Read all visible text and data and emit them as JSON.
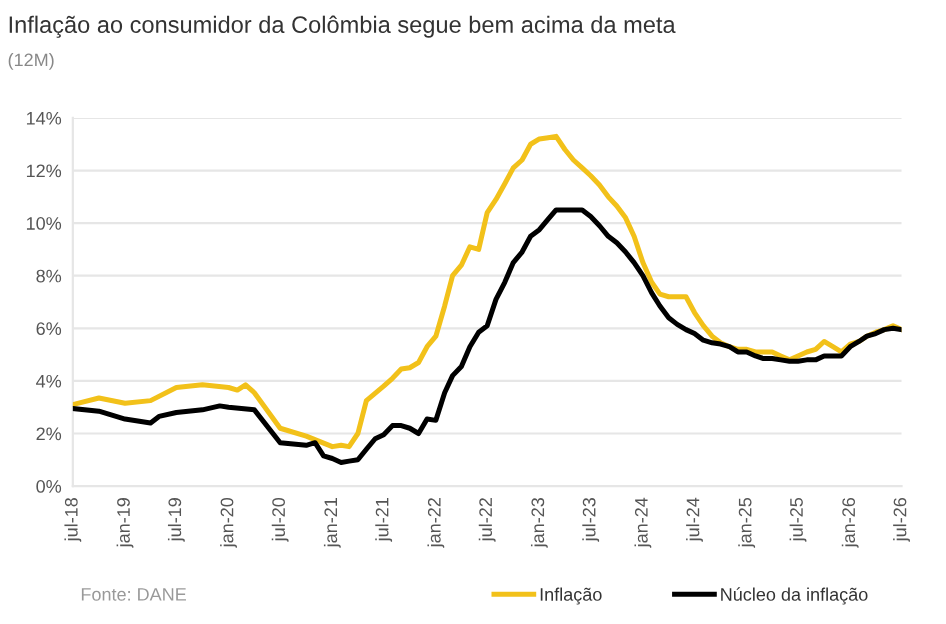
{
  "chart_data": {
    "type": "line",
    "title": "Inflação ao consumidor da Colômbia segue bem acima da meta",
    "subtitle": "(12M)",
    "series": [
      {
        "name": "Inflação",
        "color": "#f2c11a",
        "x": [
          "2018-07",
          "2018-10",
          "2019-01",
          "2019-04",
          "2019-07",
          "2019-10",
          "2020-01",
          "2020-02",
          "2020-03",
          "2020-04",
          "2020-07",
          "2020-10",
          "2021-01",
          "2021-02",
          "2021-03",
          "2021-04",
          "2021-05",
          "2021-07",
          "2021-08",
          "2021-09",
          "2021-10",
          "2021-11",
          "2021-12",
          "2022-01",
          "2022-02",
          "2022-03",
          "2022-04",
          "2022-05",
          "2022-06",
          "2022-07",
          "2022-08",
          "2022-09",
          "2022-10",
          "2022-11",
          "2022-12",
          "2023-01",
          "2023-02",
          "2023-03",
          "2023-04",
          "2023-05",
          "2023-06",
          "2023-07",
          "2023-08",
          "2023-09",
          "2023-10",
          "2023-11",
          "2023-12",
          "2024-01",
          "2024-02",
          "2024-03",
          "2024-04",
          "2024-05",
          "2024-06",
          "2024-07",
          "2024-08",
          "2024-09",
          "2024-10",
          "2024-11",
          "2024-12",
          "2025-01",
          "2025-02",
          "2025-03",
          "2025-04",
          "2025-05",
          "2025-06",
          "2025-07",
          "2025-08",
          "2025-09",
          "2025-10",
          "2025-11",
          "2025-12",
          "2026-01",
          "2026-02",
          "2026-03",
          "2026-04",
          "2026-05",
          "2026-06",
          "2026-07"
        ],
        "values": [
          3.1,
          3.35,
          3.15,
          3.25,
          3.75,
          3.85,
          3.75,
          3.65,
          3.85,
          3.55,
          2.2,
          1.9,
          1.5,
          1.55,
          1.5,
          2.0,
          3.25,
          3.8,
          4.1,
          4.45,
          4.5,
          4.7,
          5.3,
          5.7,
          6.85,
          8.0,
          8.4,
          9.1,
          9.0,
          10.4,
          10.9,
          11.5,
          12.1,
          12.4,
          13.0,
          13.2,
          13.25,
          13.3,
          12.8,
          12.4,
          12.1,
          11.8,
          11.45,
          11.0,
          10.65,
          10.2,
          9.5,
          8.5,
          7.75,
          7.3,
          7.2,
          7.2,
          7.2,
          6.6,
          6.1,
          5.7,
          5.45,
          5.3,
          5.2,
          5.2,
          5.1,
          5.1,
          5.1,
          4.95,
          4.8,
          4.95,
          5.1,
          5.2,
          5.5,
          5.3,
          5.1,
          5.4,
          5.5,
          5.7,
          5.85,
          5.95,
          6.1,
          5.95
        ]
      },
      {
        "name": "Núcleo da inflação",
        "color": "#000000",
        "x": [
          "2018-07",
          "2018-10",
          "2019-01",
          "2019-04",
          "2019-05",
          "2019-07",
          "2019-10",
          "2019-12",
          "2020-01",
          "2020-04",
          "2020-07",
          "2020-10",
          "2020-11",
          "2020-12",
          "2021-01",
          "2021-02",
          "2021-03",
          "2021-04",
          "2021-05",
          "2021-06",
          "2021-07",
          "2021-08",
          "2021-09",
          "2021-10",
          "2021-11",
          "2021-12",
          "2022-01",
          "2022-02",
          "2022-03",
          "2022-04",
          "2022-05",
          "2022-06",
          "2022-07",
          "2022-08",
          "2022-09",
          "2022-10",
          "2022-11",
          "2022-12",
          "2023-01",
          "2023-02",
          "2023-03",
          "2023-04",
          "2023-05",
          "2023-06",
          "2023-07",
          "2023-08",
          "2023-09",
          "2023-10",
          "2023-11",
          "2023-12",
          "2024-01",
          "2024-02",
          "2024-03",
          "2024-04",
          "2024-05",
          "2024-06",
          "2024-07",
          "2024-08",
          "2024-09",
          "2024-10",
          "2024-11",
          "2024-12",
          "2025-01",
          "2025-02",
          "2025-03",
          "2025-04",
          "2025-05",
          "2025-06",
          "2025-07",
          "2025-08",
          "2025-09",
          "2025-10",
          "2025-11",
          "2025-12",
          "2026-01",
          "2026-02",
          "2026-03",
          "2026-04",
          "2026-05",
          "2026-06",
          "2026-07"
        ],
        "values": [
          2.95,
          2.85,
          2.55,
          2.4,
          2.65,
          2.8,
          2.9,
          3.05,
          3.0,
          2.9,
          1.65,
          1.55,
          1.65,
          1.15,
          1.05,
          0.9,
          0.95,
          1.0,
          1.4,
          1.8,
          1.95,
          2.3,
          2.3,
          2.2,
          2.0,
          2.55,
          2.5,
          3.55,
          4.2,
          4.55,
          5.3,
          5.85,
          6.1,
          7.1,
          7.75,
          8.5,
          8.9,
          9.5,
          9.75,
          10.15,
          10.5,
          10.5,
          10.5,
          10.5,
          10.25,
          9.9,
          9.5,
          9.25,
          8.9,
          8.5,
          8.0,
          7.35,
          6.85,
          6.4,
          6.15,
          5.95,
          5.8,
          5.55,
          5.45,
          5.4,
          5.3,
          5.1,
          5.1,
          4.95,
          4.85,
          4.85,
          4.8,
          4.75,
          4.75,
          4.8,
          4.8,
          4.95,
          4.95,
          4.95,
          5.3,
          5.5,
          5.7,
          5.8,
          5.95,
          6.0,
          5.95
        ]
      }
    ],
    "xlim": [
      "2018-07",
      "2026-07"
    ],
    "xticks": [
      {
        "value": "2018-07",
        "label": "jul-18"
      },
      {
        "value": "2019-01",
        "label": "jan-19"
      },
      {
        "value": "2019-07",
        "label": "jul-19"
      },
      {
        "value": "2020-01",
        "label": "jan-20"
      },
      {
        "value": "2020-07",
        "label": "jul-20"
      },
      {
        "value": "2021-01",
        "label": "jan-21"
      },
      {
        "value": "2021-07",
        "label": "jul-21"
      },
      {
        "value": "2022-01",
        "label": "jan-22"
      },
      {
        "value": "2022-07",
        "label": "jul-22"
      },
      {
        "value": "2023-01",
        "label": "jan-23"
      },
      {
        "value": "2023-07",
        "label": "jul-23"
      },
      {
        "value": "2024-01",
        "label": "jan-24"
      },
      {
        "value": "2024-07",
        "label": "jul-24"
      },
      {
        "value": "2025-01",
        "label": "jan-25"
      },
      {
        "value": "2025-07",
        "label": "jul-25"
      },
      {
        "value": "2026-01",
        "label": "jan-26"
      },
      {
        "value": "2026-07",
        "label": "jul-26"
      }
    ],
    "ylim": [
      0,
      14
    ],
    "yticks": [
      {
        "value": 0,
        "label": "0%"
      },
      {
        "value": 2,
        "label": "2%"
      },
      {
        "value": 4,
        "label": "4%"
      },
      {
        "value": 6,
        "label": "6%"
      },
      {
        "value": 8,
        "label": "8%"
      },
      {
        "value": 10,
        "label": "10%"
      },
      {
        "value": 12,
        "label": "12%"
      },
      {
        "value": 14,
        "label": "14%"
      }
    ],
    "grid": "y",
    "legend": "bottom",
    "line_style": "solid",
    "marker": "none",
    "annotations": [
      "Fonte: DANE"
    ]
  }
}
